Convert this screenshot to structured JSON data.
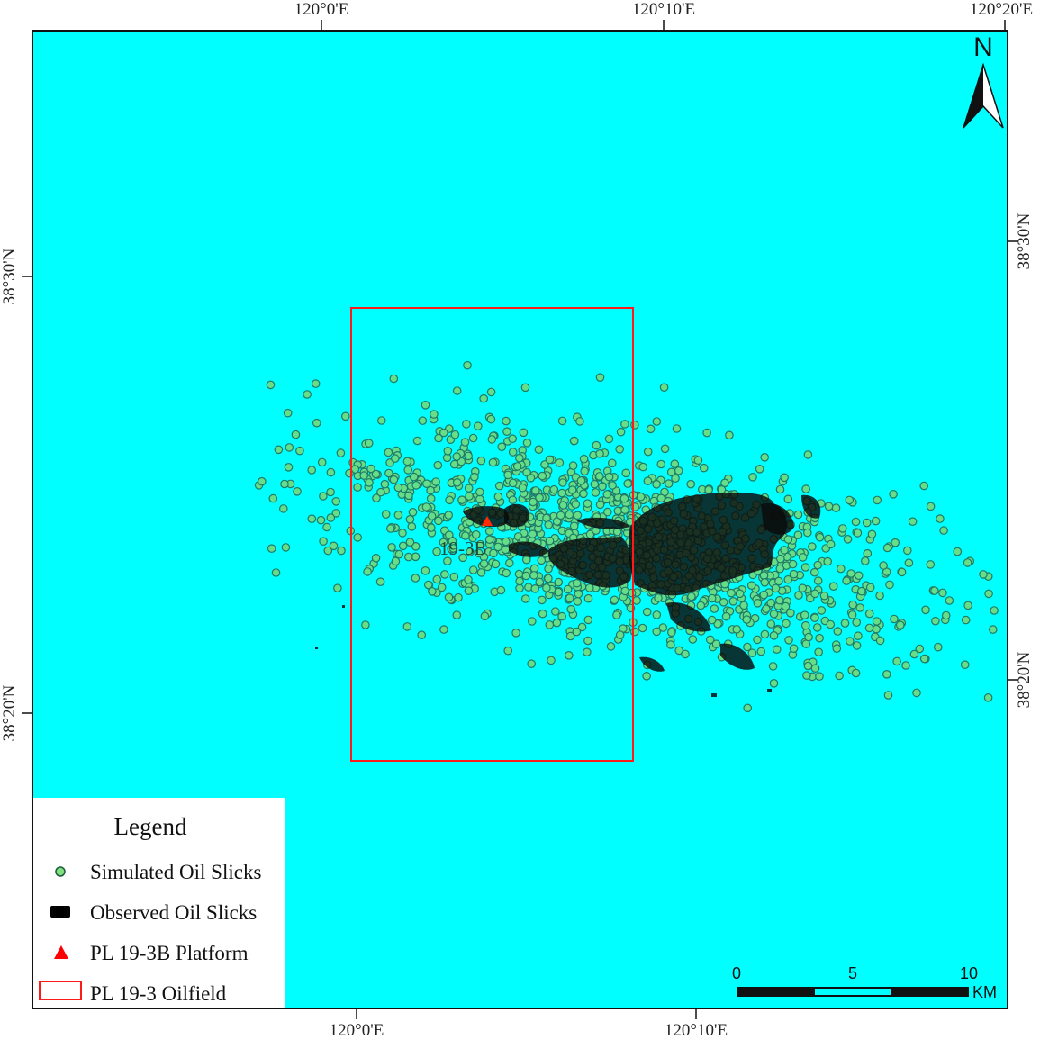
{
  "map": {
    "water_color": "#00ffff",
    "frame_color": "#111111",
    "graticule_top": [
      "120°0'E",
      "120°10'E",
      "120°20'E"
    ],
    "graticule_bottom": [
      "120°0'E",
      "120°10'E"
    ],
    "graticule_left": [
      "38°30'N",
      "38°20'N"
    ],
    "graticule_right": [
      "38°30'N",
      "38°20'N"
    ],
    "north_label": "N",
    "platform_label": "19-3B"
  },
  "legend": {
    "title": "Legend",
    "items": [
      {
        "label": "Simulated Oil Slicks",
        "symbol": "green-circle",
        "color": "#7fe07f"
      },
      {
        "label": "Observed Oil Slicks",
        "symbol": "black-rect",
        "color": "#000000"
      },
      {
        "label": "PL 19-3B Platform",
        "symbol": "red-triangle",
        "color": "#ff0000"
      },
      {
        "label": "PL 19-3 Oilfield",
        "symbol": "red-outline-rect",
        "color": "#ff0000"
      }
    ]
  },
  "scale_bar": {
    "ticks": [
      "0",
      "5",
      "10"
    ],
    "unit": "KM"
  }
}
